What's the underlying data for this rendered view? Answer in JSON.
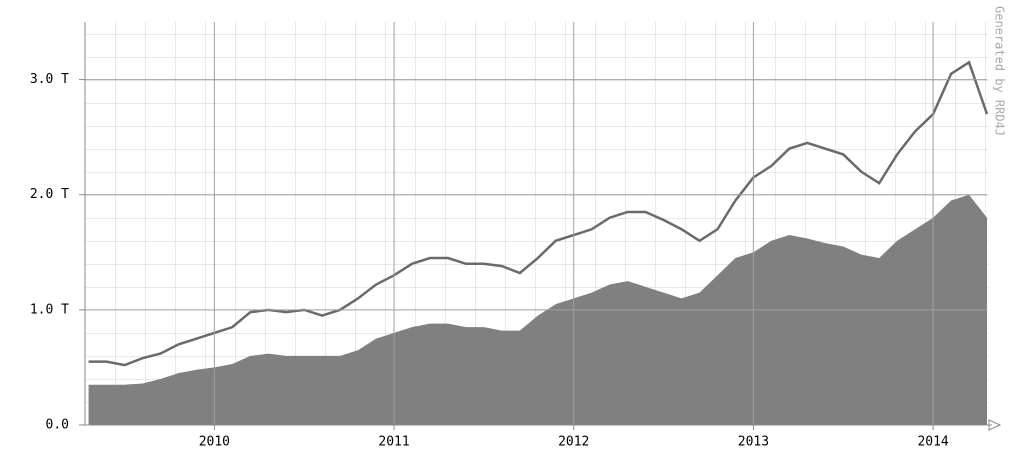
{
  "chart_data": {
    "type": "line",
    "credit": "Generated by RRD4J",
    "x": [
      2009.3,
      2009.4,
      2009.5,
      2009.6,
      2009.7,
      2009.8,
      2009.9,
      2010.0,
      2010.1,
      2010.2,
      2010.3,
      2010.4,
      2010.5,
      2010.6,
      2010.7,
      2010.8,
      2010.9,
      2011.0,
      2011.1,
      2011.2,
      2011.3,
      2011.4,
      2011.5,
      2011.6,
      2011.7,
      2011.8,
      2011.9,
      2012.0,
      2012.1,
      2012.2,
      2012.3,
      2012.4,
      2012.5,
      2012.6,
      2012.7,
      2012.8,
      2012.9,
      2013.0,
      2013.1,
      2013.2,
      2013.3,
      2013.4,
      2013.5,
      2013.6,
      2013.7,
      2013.8,
      2013.9,
      2014.0,
      2014.1,
      2014.2,
      2014.3
    ],
    "series": [
      {
        "kind": "area",
        "color": "#808080",
        "values": [
          0.35,
          0.35,
          0.35,
          0.36,
          0.4,
          0.45,
          0.48,
          0.5,
          0.53,
          0.6,
          0.62,
          0.6,
          0.6,
          0.6,
          0.6,
          0.65,
          0.75,
          0.8,
          0.85,
          0.88,
          0.88,
          0.85,
          0.85,
          0.82,
          0.82,
          0.95,
          1.05,
          1.1,
          1.15,
          1.22,
          1.25,
          1.2,
          1.15,
          1.1,
          1.15,
          1.3,
          1.45,
          1.5,
          1.6,
          1.65,
          1.62,
          1.58,
          1.55,
          1.48,
          1.45,
          1.6,
          1.7,
          1.8,
          1.95,
          2.0,
          1.8
        ]
      },
      {
        "kind": "line",
        "color": "#6a6a6a",
        "values": [
          0.55,
          0.55,
          0.52,
          0.58,
          0.62,
          0.7,
          0.75,
          0.8,
          0.85,
          0.98,
          1.0,
          0.98,
          1.0,
          0.95,
          1.0,
          1.1,
          1.22,
          1.3,
          1.4,
          1.45,
          1.45,
          1.4,
          1.4,
          1.38,
          1.32,
          1.45,
          1.6,
          1.65,
          1.7,
          1.8,
          1.85,
          1.85,
          1.78,
          1.7,
          1.6,
          1.7,
          1.95,
          2.15,
          2.25,
          2.4,
          2.45,
          2.4,
          2.35,
          2.2,
          2.1,
          2.35,
          2.55,
          2.7,
          3.05,
          3.15,
          2.7
        ]
      }
    ],
    "xlim": [
      2009.28,
      2014.3
    ],
    "xticks": [
      2010,
      2011,
      2012,
      2013,
      2014
    ],
    "ylim": [
      0,
      3.5
    ],
    "yticks": [
      {
        "value": 0,
        "label": "0.0"
      },
      {
        "value": 1,
        "label": "1.0 T"
      },
      {
        "value": 2,
        "label": "2.0 T"
      },
      {
        "value": 3,
        "label": "3.0 T"
      }
    ],
    "grid": true
  }
}
